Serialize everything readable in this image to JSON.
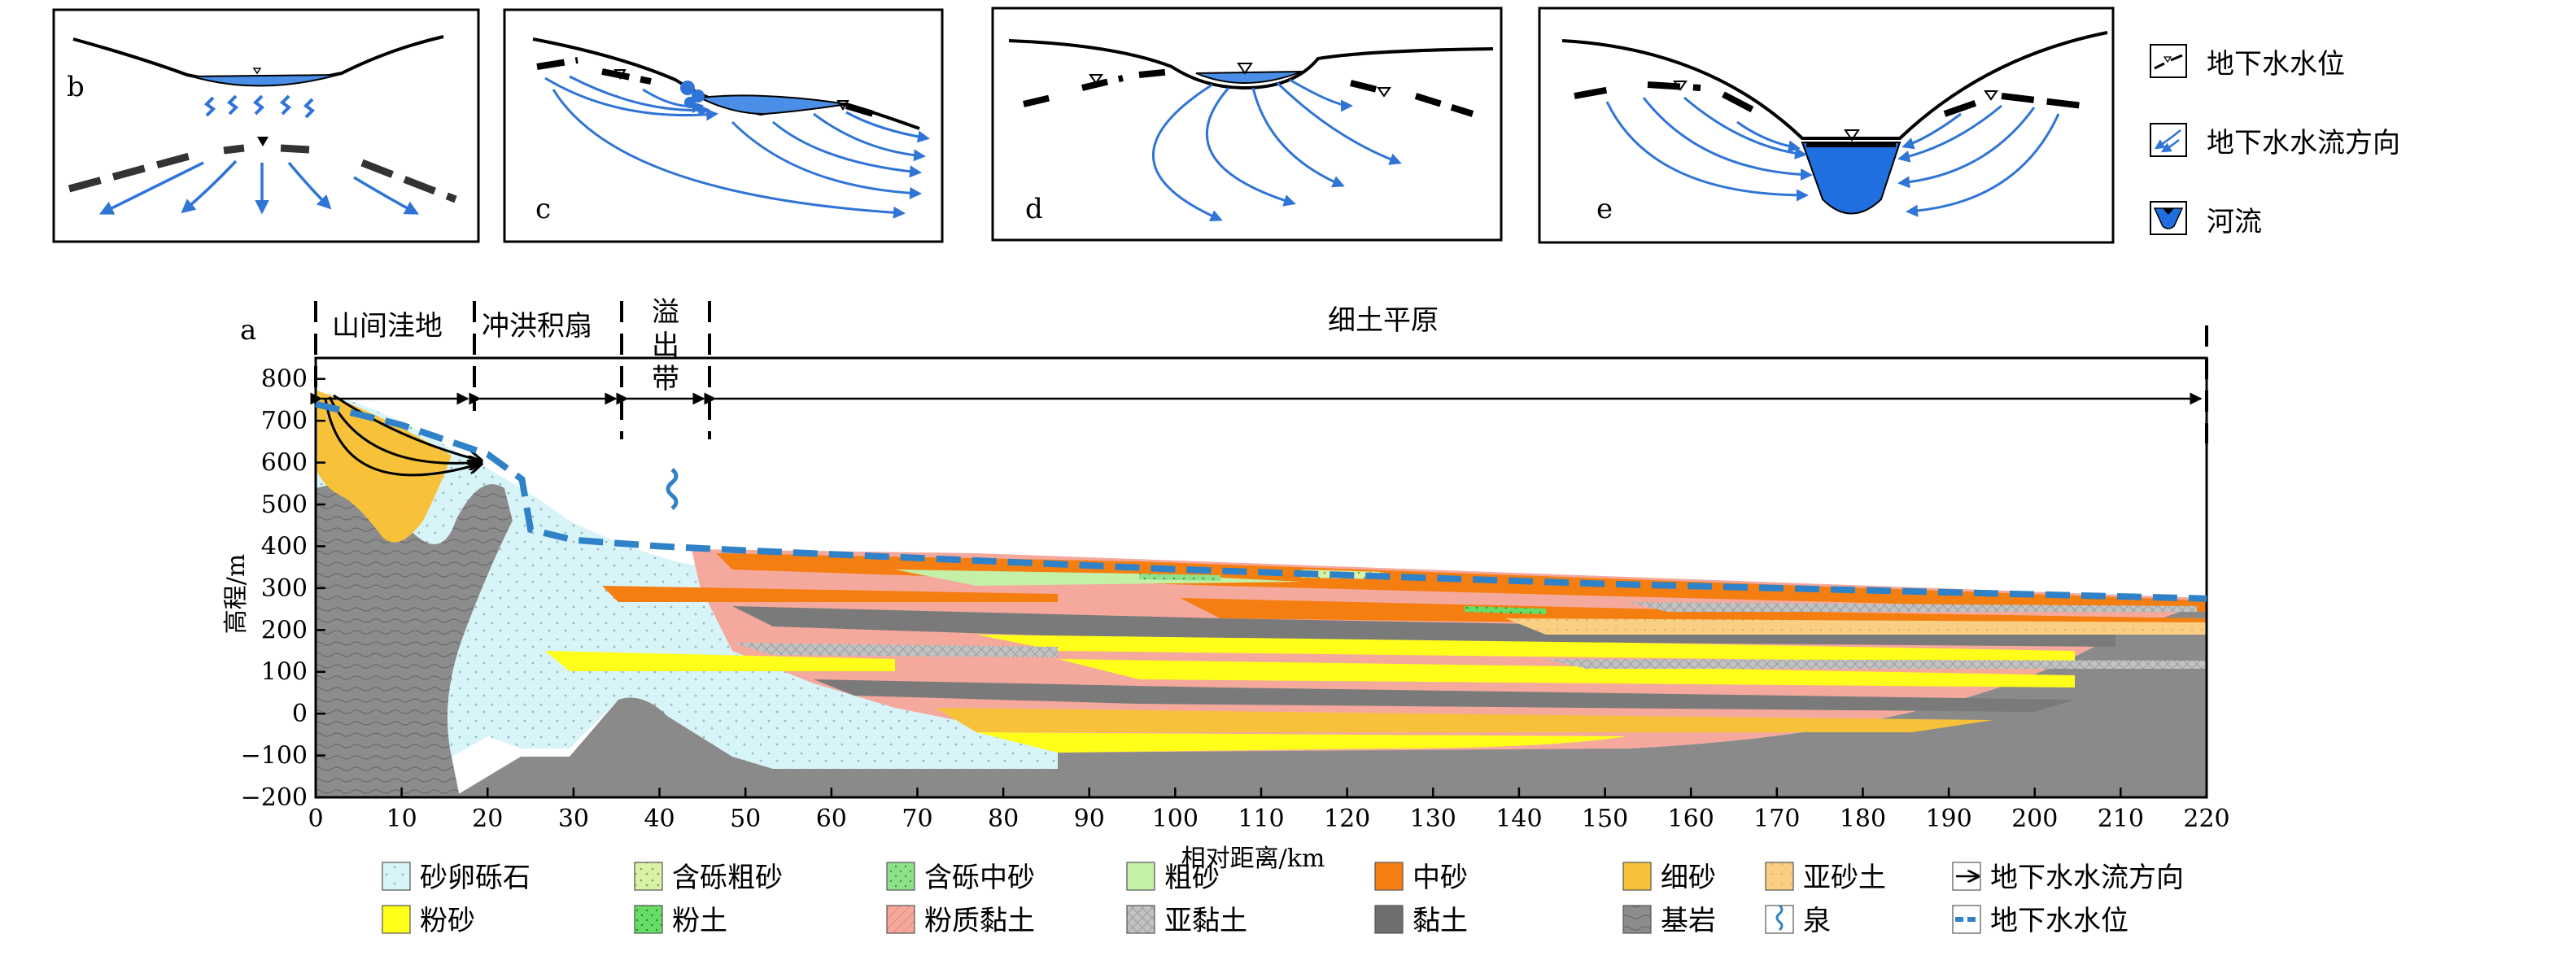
{
  "insets": [
    {
      "id": "b",
      "letter": "b"
    },
    {
      "id": "c",
      "letter": "c"
    },
    {
      "id": "d",
      "letter": "d"
    },
    {
      "id": "e",
      "letter": "e"
    }
  ],
  "inset_legend": [
    {
      "key": "water_table",
      "label": "地下水水位"
    },
    {
      "key": "flow",
      "label": "地下水水流方向"
    },
    {
      "key": "river",
      "label": "河流"
    }
  ],
  "section": {
    "letter": "a",
    "zones": [
      {
        "key": "intermontane",
        "label": "山间洼地"
      },
      {
        "key": "alluvial_fan",
        "label": "冲洪积扇"
      },
      {
        "key": "overflow",
        "label": "溢出带"
      },
      {
        "key": "plain",
        "label": "细土平原"
      }
    ],
    "ylabel": "高程/m",
    "xlabel": "相对距离/km",
    "x_ticks": [
      "0",
      "10",
      "20",
      "30",
      "40",
      "50",
      "60",
      "70",
      "80",
      "90",
      "100",
      "110",
      "120",
      "130",
      "140",
      "150",
      "160",
      "170",
      "180",
      "190",
      "200",
      "210",
      "220"
    ],
    "y_ticks": [
      "800",
      "700",
      "600",
      "500",
      "400",
      "300",
      "200",
      "100",
      "0",
      "−100",
      "−200"
    ],
    "xlim": [
      0,
      220
    ],
    "ylim": [
      -200,
      850
    ]
  },
  "legend": [
    {
      "key": "gravel",
      "label": "砂卵砾石"
    },
    {
      "key": "gravelly_coarse_sand",
      "label": "含砾粗砂"
    },
    {
      "key": "gravelly_medium_sand",
      "label": "含砾中砂"
    },
    {
      "key": "coarse_sand",
      "label": "粗砂"
    },
    {
      "key": "medium_sand",
      "label": "中砂"
    },
    {
      "key": "fine_sand",
      "label": "细砂"
    },
    {
      "key": "sandy_loam",
      "label": "亚砂土"
    },
    {
      "key": "flow_arrow",
      "label": "地下水水流方向"
    },
    {
      "key": "silt_sand",
      "label": "粉砂"
    },
    {
      "key": "silt",
      "label": "粉土"
    },
    {
      "key": "silty_clay",
      "label": "粉质黏土"
    },
    {
      "key": "sub_clay",
      "label": "亚黏土"
    },
    {
      "key": "clay",
      "label": "黏土"
    },
    {
      "key": "bedrock",
      "label": "基岩"
    },
    {
      "key": "spring",
      "label": "泉"
    },
    {
      "key": "water_level",
      "label": "地下水水位"
    }
  ],
  "colors": {
    "water": "#4a8ee8",
    "flow_arrow": "#2f74d6",
    "water_table_line": "#2f82c8",
    "gravel": "#d7f4f8",
    "gravelly_coarse_sand": "#d8f2a8",
    "gravelly_medium_sand": "#8ee08a",
    "coarse_sand": "#c4f0a8",
    "medium_sand": "#f57e10",
    "fine_sand": "#f7c23a",
    "sandy_loam": "#f9cf84",
    "silt_sand": "#ffff1a",
    "silt": "#66dd66",
    "silty_clay": "#f5a89c",
    "sub_clay": "#c2c2c2",
    "clay": "#6e6e6e",
    "bedrock": "#8c8c8c"
  }
}
